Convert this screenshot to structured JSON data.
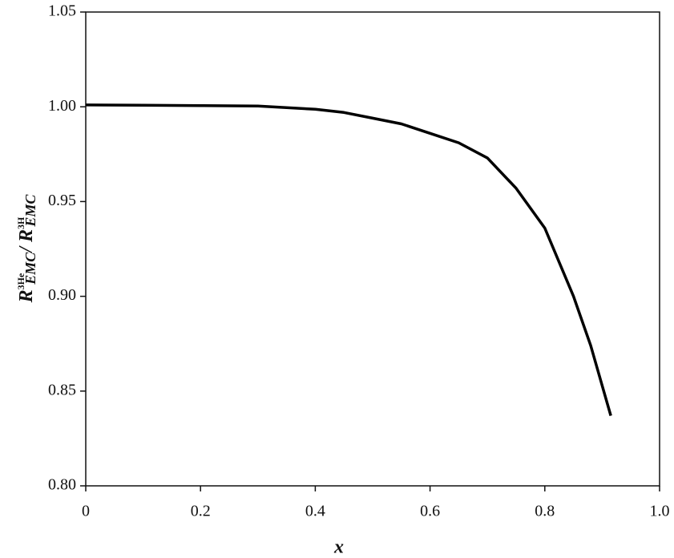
{
  "chart_data": {
    "type": "line",
    "x": [
      0,
      0.1,
      0.2,
      0.3,
      0.4,
      0.45,
      0.5,
      0.55,
      0.6,
      0.65,
      0.7,
      0.75,
      0.8,
      0.85,
      0.88,
      0.915
    ],
    "values": [
      1.001,
      1.0008,
      1.0006,
      1.0004,
      0.9987,
      0.997,
      0.994,
      0.991,
      0.986,
      0.981,
      0.973,
      0.957,
      0.936,
      0.9,
      0.874,
      0.837
    ],
    "color": "#000000",
    "xlabel": "x",
    "ylabel": [
      "R",
      "3He",
      "EMC",
      "/ R",
      "3H",
      "EMC"
    ],
    "xlim": [
      0,
      1
    ],
    "xticks": [
      0,
      0.2,
      0.4,
      0.6,
      0.8,
      {
        "value": 1,
        "label": "1.0"
      }
    ],
    "ylim": [
      0.8,
      1.05
    ],
    "yticks": [
      {
        "value": 0.8,
        "label": "0.80"
      },
      {
        "value": 0.85,
        "label": "0.85"
      },
      {
        "value": 0.9,
        "label": "0.90"
      },
      {
        "value": 0.95,
        "label": "0.95"
      },
      {
        "value": 1,
        "label": "1.00"
      },
      {
        "value": 1.05,
        "label": "1.05"
      }
    ],
    "grid": false
  }
}
